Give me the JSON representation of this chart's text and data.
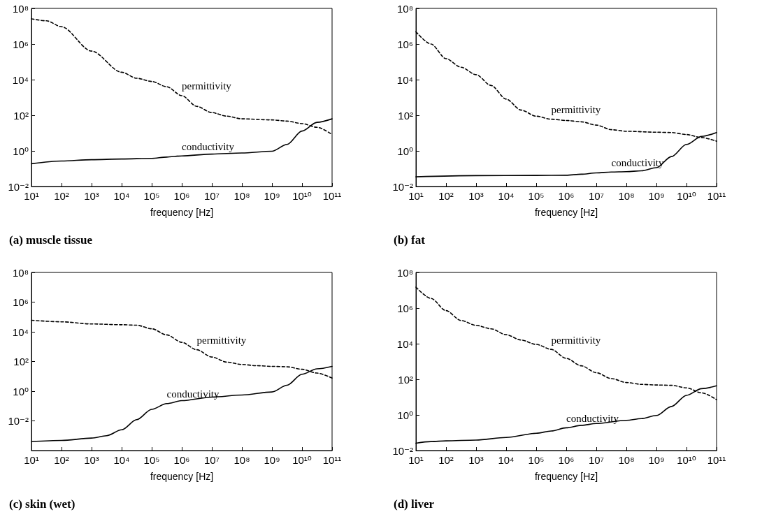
{
  "chart_data": [
    {
      "type": "line",
      "title": "(a) muscle tissue",
      "xlabel": "frequency [Hz]",
      "log": "xy",
      "grid": false,
      "legend": false,
      "xlim": [
        10,
        100000000000
      ],
      "ylim": [
        0.01,
        100000000
      ],
      "xticks": [
        {
          "value": 10,
          "label": "10¹"
        },
        {
          "value": 100,
          "label": "10²"
        },
        {
          "value": 1000,
          "label": "10³"
        },
        {
          "value": 10000,
          "label": "10⁴"
        },
        {
          "value": 100000,
          "label": "10⁵"
        },
        {
          "value": 1000000,
          "label": "10⁶"
        },
        {
          "value": 10000000,
          "label": "10⁷"
        },
        {
          "value": 100000000,
          "label": "10⁸"
        },
        {
          "value": 1000000000,
          "label": "10⁹"
        },
        {
          "value": 10000000000,
          "label": "10¹⁰"
        },
        {
          "value": 100000000000,
          "label": "10¹¹"
        }
      ],
      "yticks": [
        {
          "value": 0.01,
          "label": "10⁻²"
        },
        {
          "value": 1,
          "label": "10⁰"
        },
        {
          "value": 100,
          "label": "10²"
        },
        {
          "value": 10000,
          "label": "10⁴"
        },
        {
          "value": 1000000,
          "label": "10⁶"
        },
        {
          "value": 100000000,
          "label": "10⁸"
        }
      ],
      "series": [
        {
          "name": "permittivity",
          "color": "#000000",
          "line_style": "dashed",
          "x": [
            10,
            31.6,
            100,
            1000,
            10000,
            31600,
            100000,
            316000,
            1000000,
            3160000,
            10000000,
            31600000,
            100000000,
            1000000000,
            3160000000,
            10000000000,
            31600000000,
            100000000000
          ],
          "values": [
            26000000,
            20000000,
            9300000,
            400000,
            26000,
            12000,
            7900,
            4000,
            1260,
            316,
            141,
            89,
            63,
            55,
            47,
            34,
            21,
            8.3
          ]
        },
        {
          "name": "conductivity",
          "color": "#000000",
          "line_style": "solid",
          "x": [
            10,
            100,
            1000,
            10000,
            100000,
            316000,
            1000000,
            10000000,
            100000000,
            1000000000,
            3160000000,
            10000000000,
            31600000000,
            100000000000
          ],
          "values": [
            0.19,
            0.27,
            0.32,
            0.35,
            0.38,
            0.45,
            0.52,
            0.66,
            0.76,
            0.95,
            2.3,
            13,
            40,
            63
          ]
        }
      ]
    },
    {
      "type": "line",
      "title": "(b) fat",
      "xlabel": "frequency [Hz]",
      "log": "xy",
      "grid": false,
      "legend": false,
      "xlim": [
        10,
        100000000000
      ],
      "ylim": [
        0.01,
        100000000
      ],
      "xticks": [
        {
          "value": 10,
          "label": "10¹"
        },
        {
          "value": 100,
          "label": "10²"
        },
        {
          "value": 1000,
          "label": "10³"
        },
        {
          "value": 10000,
          "label": "10⁴"
        },
        {
          "value": 100000,
          "label": "10⁵"
        },
        {
          "value": 1000000,
          "label": "10⁶"
        },
        {
          "value": 10000000,
          "label": "10⁷"
        },
        {
          "value": 100000000,
          "label": "10⁸"
        },
        {
          "value": 1000000000,
          "label": "10⁹"
        },
        {
          "value": 10000000000,
          "label": "10¹⁰"
        },
        {
          "value": 100000000000,
          "label": "10¹¹"
        }
      ],
      "yticks": [
        {
          "value": 0.01,
          "label": "10⁻²"
        },
        {
          "value": 1,
          "label": "10⁰"
        },
        {
          "value": 100,
          "label": "10²"
        },
        {
          "value": 10000,
          "label": "10⁴"
        },
        {
          "value": 1000000,
          "label": "10⁶"
        },
        {
          "value": 100000000,
          "label": "10⁸"
        }
      ],
      "series": [
        {
          "name": "permittivity",
          "color": "#000000",
          "line_style": "dashed",
          "x": [
            10,
            31.6,
            100,
            316,
            1000,
            3160,
            10000,
            31600,
            100000,
            316000,
            1000000,
            3160000,
            10000000,
            31600000,
            100000000,
            1000000000,
            3160000000,
            10000000000,
            31600000000,
            100000000000
          ],
          "values": [
            4900000,
            1000000,
            150000,
            50000,
            19000,
            4700,
            810,
            195,
            89,
            60,
            51,
            43,
            28,
            15.5,
            12.6,
            11.2,
            10.7,
            8.3,
            5.6,
            3.5
          ]
        },
        {
          "name": "conductivity",
          "color": "#000000",
          "line_style": "solid",
          "x": [
            10,
            1000,
            100000,
            1000000,
            3160000,
            10000000,
            31600000,
            100000000,
            316000000,
            1000000000,
            3160000000,
            10000000000,
            31600000000,
            100000000000
          ],
          "values": [
            0.035,
            0.041,
            0.042,
            0.043,
            0.049,
            0.058,
            0.065,
            0.068,
            0.076,
            0.115,
            0.48,
            2.3,
            6.5,
            10.7
          ]
        }
      ]
    },
    {
      "type": "line",
      "title": "(c) skin (wet)",
      "xlabel": "frequency [Hz]",
      "log": "xy",
      "grid": false,
      "legend": false,
      "xlim": [
        10,
        100000000000
      ],
      "ylim": [
        0.0001,
        100000000
      ],
      "xticks": [
        {
          "value": 10,
          "label": "10¹"
        },
        {
          "value": 100,
          "label": "10²"
        },
        {
          "value": 1000,
          "label": "10³"
        },
        {
          "value": 10000,
          "label": "10⁴"
        },
        {
          "value": 100000,
          "label": "10⁵"
        },
        {
          "value": 1000000,
          "label": "10⁶"
        },
        {
          "value": 10000000,
          "label": "10⁷"
        },
        {
          "value": 100000000,
          "label": "10⁸"
        },
        {
          "value": 1000000000,
          "label": "10⁹"
        },
        {
          "value": 10000000000,
          "label": "10¹⁰"
        },
        {
          "value": 100000000000,
          "label": "10¹¹"
        }
      ],
      "yticks": [
        {
          "value": 0.01,
          "label": "10⁻²"
        },
        {
          "value": 1,
          "label": "10⁰"
        },
        {
          "value": 100,
          "label": "10²"
        },
        {
          "value": 10000,
          "label": "10⁴"
        },
        {
          "value": 1000000,
          "label": "10⁶"
        },
        {
          "value": 100000000,
          "label": "10⁸"
        }
      ],
      "series": [
        {
          "name": "permittivity",
          "color": "#000000",
          "line_style": "dashed",
          "x": [
            10,
            100,
            1000,
            10000,
            31600,
            100000,
            316000,
            1000000,
            3160000,
            10000000,
            31600000,
            100000000,
            316000000,
            1000000000,
            3160000000,
            10000000000,
            31600000000,
            100000000000
          ],
          "values": [
            60000,
            47000,
            34000,
            30000,
            28000,
            16000,
            6200,
            1950,
            620,
            200,
            91,
            63,
            52,
            47,
            44,
            30,
            16.6,
            7.6
          ]
        },
        {
          "name": "conductivity",
          "color": "#000000",
          "line_style": "solid",
          "x": [
            10,
            100,
            1000,
            3160,
            10000,
            31600,
            100000,
            316000,
            1000000,
            10000000,
            100000000,
            1000000000,
            3160000000,
            10000000000,
            31600000000,
            100000000000
          ],
          "values": [
            0.0004,
            0.00048,
            0.00069,
            0.001,
            0.0025,
            0.012,
            0.06,
            0.145,
            0.23,
            0.4,
            0.55,
            0.89,
            2.5,
            13.8,
            32,
            47
          ]
        }
      ]
    },
    {
      "type": "line",
      "title": "(d) liver",
      "xlabel": "frequency [Hz]",
      "log": "xy",
      "grid": false,
      "legend": false,
      "xlim": [
        10,
        100000000000
      ],
      "ylim": [
        0.01,
        100000000
      ],
      "xticks": [
        {
          "value": 10,
          "label": "10¹"
        },
        {
          "value": 100,
          "label": "10²"
        },
        {
          "value": 1000,
          "label": "10³"
        },
        {
          "value": 10000,
          "label": "10⁴"
        },
        {
          "value": 100000,
          "label": "10⁵"
        },
        {
          "value": 1000000,
          "label": "10⁶"
        },
        {
          "value": 10000000,
          "label": "10⁷"
        },
        {
          "value": 100000000,
          "label": "10⁸"
        },
        {
          "value": 1000000000,
          "label": "10⁹"
        },
        {
          "value": 10000000000,
          "label": "10¹⁰"
        },
        {
          "value": 100000000000,
          "label": "10¹¹"
        }
      ],
      "yticks": [
        {
          "value": 0.01,
          "label": "10⁻²"
        },
        {
          "value": 1,
          "label": "10⁰"
        },
        {
          "value": 100,
          "label": "10²"
        },
        {
          "value": 10000,
          "label": "10⁴"
        },
        {
          "value": 1000000,
          "label": "10⁶"
        },
        {
          "value": 100000000,
          "label": "10⁸"
        }
      ],
      "series": [
        {
          "name": "permittivity",
          "color": "#000000",
          "line_style": "dashed",
          "x": [
            10,
            31.6,
            100,
            316,
            1000,
            3160,
            10000,
            31600,
            100000,
            316000,
            1000000,
            3160000,
            10000000,
            31600000,
            100000000,
            316000000,
            1000000000,
            3160000000,
            10000000000,
            31600000000,
            100000000000
          ],
          "values": [
            15000000,
            3500000,
            720000,
            200000,
            107000,
            68000,
            32000,
            16000,
            9100,
            4800,
            1500,
            575,
            234,
            110,
            66,
            52,
            48,
            46,
            33,
            17.4,
            7.2
          ]
        },
        {
          "name": "conductivity",
          "color": "#000000",
          "line_style": "solid",
          "x": [
            10,
            31.6,
            100,
            1000,
            10000,
            100000,
            316000,
            1000000,
            3160000,
            10000000,
            100000000,
            316000000,
            1000000000,
            3160000000,
            10000000000,
            31600000000,
            100000000000
          ],
          "values": [
            0.026,
            0.032,
            0.035,
            0.039,
            0.054,
            0.093,
            0.126,
            0.19,
            0.26,
            0.33,
            0.5,
            0.62,
            0.93,
            3,
            12.6,
            30,
            43
          ]
        }
      ]
    }
  ]
}
